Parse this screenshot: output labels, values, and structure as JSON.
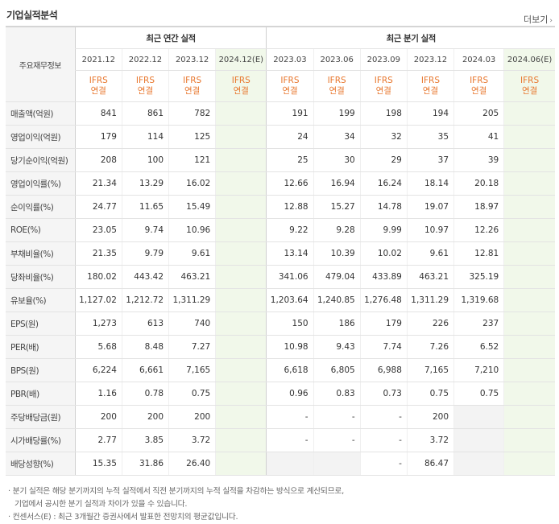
{
  "header": {
    "title": "기업실적분석",
    "more_label": "더보기",
    "more_icon": "chevron-right-icon"
  },
  "table": {
    "corner_label": "주요재무정보",
    "annual_group": "최근 연간 실적",
    "quarter_group": "최근 분기 실적",
    "annual_periods": [
      "2021.12",
      "2022.12",
      "2023.12",
      "2024.12(E)"
    ],
    "quarter_periods": [
      "2023.03",
      "2023.06",
      "2023.09",
      "2023.12",
      "2024.03",
      "2024.06(E)"
    ],
    "basis_line1": "IFRS",
    "basis_line2": "연결",
    "rows": [
      {
        "label": "매출액(억원)",
        "annual": [
          "841",
          "861",
          "782",
          ""
        ],
        "quarter": [
          "191",
          "199",
          "198",
          "194",
          "205",
          ""
        ]
      },
      {
        "label": "영업이익(억원)",
        "annual": [
          "179",
          "114",
          "125",
          ""
        ],
        "quarter": [
          "24",
          "34",
          "32",
          "35",
          "41",
          ""
        ]
      },
      {
        "label": "당기순이익(억원)",
        "annual": [
          "208",
          "100",
          "121",
          ""
        ],
        "quarter": [
          "25",
          "30",
          "29",
          "37",
          "39",
          ""
        ]
      },
      {
        "label": "영업이익률(%)",
        "annual": [
          "21.34",
          "13.29",
          "16.02",
          ""
        ],
        "quarter": [
          "12.66",
          "16.94",
          "16.24",
          "18.14",
          "20.18",
          ""
        ]
      },
      {
        "label": "순이익률(%)",
        "annual": [
          "24.77",
          "11.65",
          "15.49",
          ""
        ],
        "quarter": [
          "12.88",
          "15.27",
          "14.78",
          "19.07",
          "18.97",
          ""
        ]
      },
      {
        "label": "ROE(%)",
        "annual": [
          "23.05",
          "9.74",
          "10.96",
          ""
        ],
        "quarter": [
          "9.22",
          "9.28",
          "9.99",
          "10.97",
          "12.26",
          ""
        ]
      },
      {
        "label": "부채비율(%)",
        "annual": [
          "21.35",
          "9.79",
          "9.61",
          ""
        ],
        "quarter": [
          "13.14",
          "10.39",
          "10.02",
          "9.61",
          "12.81",
          ""
        ]
      },
      {
        "label": "당좌비율(%)",
        "annual": [
          "180.02",
          "443.42",
          "463.21",
          ""
        ],
        "quarter": [
          "341.06",
          "479.04",
          "433.89",
          "463.21",
          "325.19",
          ""
        ]
      },
      {
        "label": "유보율(%)",
        "annual": [
          "1,127.02",
          "1,212.72",
          "1,311.29",
          ""
        ],
        "quarter": [
          "1,203.64",
          "1,240.85",
          "1,276.48",
          "1,311.29",
          "1,319.68",
          ""
        ]
      },
      {
        "label": "EPS(원)",
        "annual": [
          "1,273",
          "613",
          "740",
          ""
        ],
        "quarter": [
          "150",
          "186",
          "179",
          "226",
          "237",
          ""
        ]
      },
      {
        "label": "PER(배)",
        "annual": [
          "5.68",
          "8.48",
          "7.27",
          ""
        ],
        "quarter": [
          "10.98",
          "9.43",
          "7.74",
          "7.26",
          "6.52",
          ""
        ]
      },
      {
        "label": "BPS(원)",
        "annual": [
          "6,224",
          "6,661",
          "7,165",
          ""
        ],
        "quarter": [
          "6,618",
          "6,805",
          "6,988",
          "7,165",
          "7,210",
          ""
        ]
      },
      {
        "label": "PBR(배)",
        "annual": [
          "1.16",
          "0.78",
          "0.75",
          ""
        ],
        "quarter": [
          "0.96",
          "0.83",
          "0.73",
          "0.75",
          "0.75",
          ""
        ]
      },
      {
        "label": "주당배당금(원)",
        "annual": [
          "200",
          "200",
          "200",
          ""
        ],
        "quarter": [
          "-",
          "-",
          "-",
          "200",
          "",
          ""
        ]
      },
      {
        "label": "시가배당률(%)",
        "annual": [
          "2.77",
          "3.85",
          "3.72",
          ""
        ],
        "quarter": [
          "-",
          "-",
          "-",
          "3.72",
          "",
          ""
        ]
      },
      {
        "label": "배당성향(%)",
        "annual": [
          "15.35",
          "31.86",
          "26.40",
          ""
        ],
        "quarter": [
          "",
          "",
          "-",
          "86.47",
          "",
          ""
        ]
      }
    ]
  },
  "notes": [
    "분기 실적은 해당 분기까지의 누적 실적에서 직전 분기까지의 누적 실적을 차감하는 방식으로 계산되므로,",
    "기업에서 공시한 분기 실적과 차이가 있을 수 있습니다.",
    "컨센서스(E) : 최근 3개월간 증권사에서 발표한 전망치의 평균값입니다."
  ]
}
